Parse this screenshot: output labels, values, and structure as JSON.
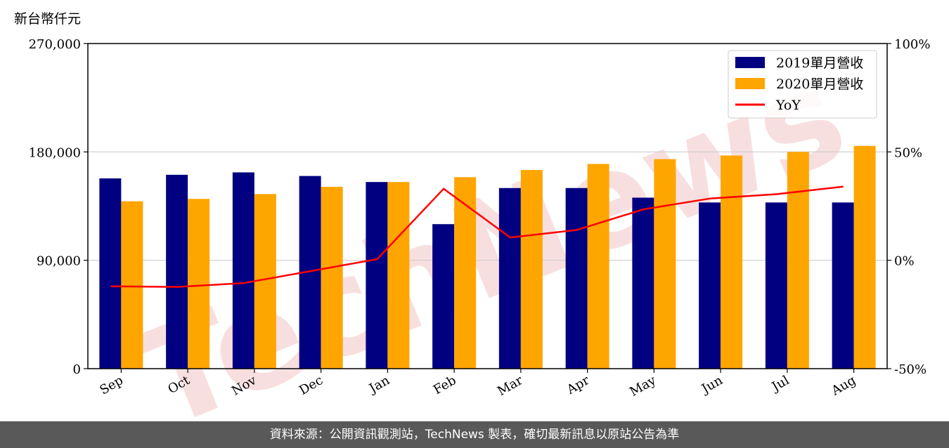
{
  "chart_data": {
    "type": "bar",
    "y_unit_label": "新台幣仟元",
    "categories": [
      "Sep",
      "Oct",
      "Nov",
      "Dec",
      "Jan",
      "Feb",
      "Mar",
      "Apr",
      "May",
      "Jun",
      "Jul",
      "Aug"
    ],
    "series": [
      {
        "name": "2019單月營收",
        "type": "bar",
        "axis": "left",
        "color": "#000080",
        "values": [
          158000,
          161000,
          163000,
          160000,
          155000,
          120000,
          150000,
          150000,
          142000,
          138000,
          138000,
          138000
        ]
      },
      {
        "name": "2020單月營收",
        "type": "bar",
        "axis": "left",
        "color": "#ffa500",
        "values": [
          139000,
          141000,
          145000,
          151000,
          155000,
          159000,
          165000,
          170000,
          174000,
          177000,
          180000,
          185000
        ]
      },
      {
        "name": "YoY",
        "type": "line",
        "axis": "right",
        "color": "#ff0000",
        "values": [
          -12,
          -12.3,
          -10.5,
          -5,
          0.5,
          33,
          10.5,
          14,
          23.5,
          28.5,
          30.5,
          34
        ]
      }
    ],
    "left_axis": {
      "ylim": [
        0,
        270000
      ],
      "ticks": [
        "0",
        "90,000",
        "180,000",
        "270,000"
      ],
      "tick_values": [
        0,
        90000,
        180000,
        270000
      ]
    },
    "right_axis": {
      "ylim": [
        -50,
        100
      ],
      "ticks": [
        "-50%",
        "0%",
        "50%",
        "100%"
      ],
      "tick_values": [
        -50,
        0,
        50,
        100
      ]
    },
    "grid": "horizontal",
    "legend": "top-right",
    "watermark_text": "TechNews"
  },
  "footer": {
    "source_text": "資料來源：公開資訊觀測站，TechNews 製表，確切最新訊息以原站公告為準"
  }
}
